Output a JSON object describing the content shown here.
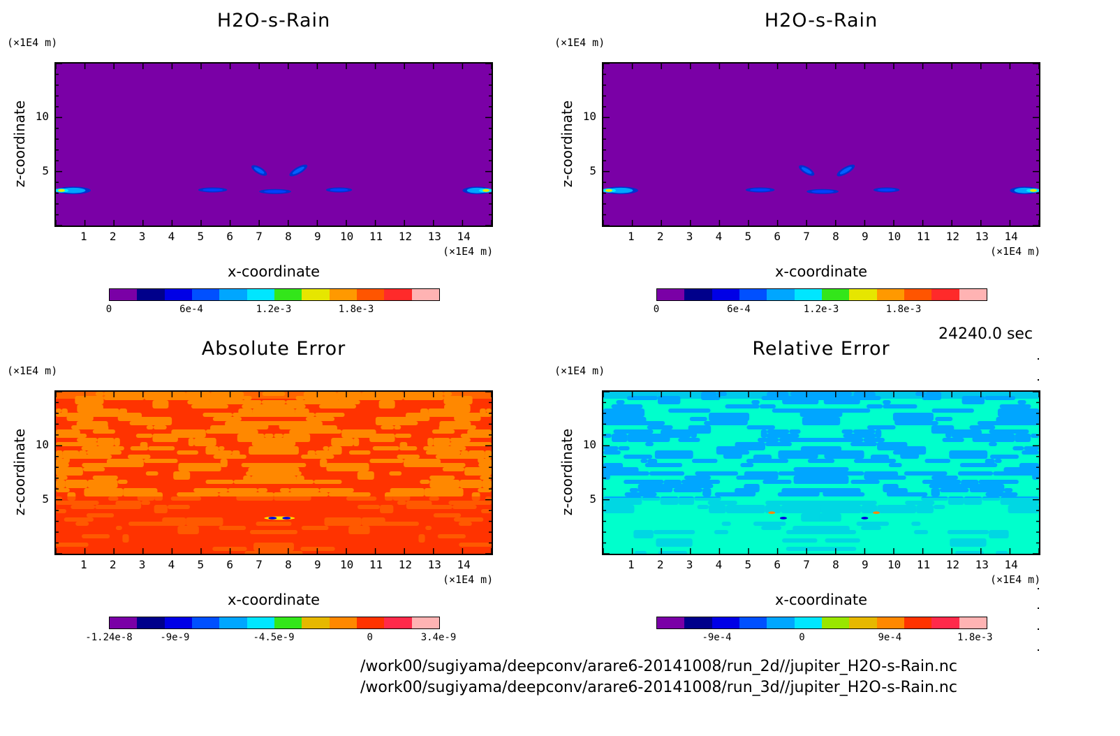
{
  "panels": [
    {
      "title": "H2O-s-Rain",
      "ylabel": "z-coordinate",
      "xlabel": "x-coordinate",
      "yunit": "(×1E4 m)",
      "xunit": "(×1E4 m)",
      "colorbar": {
        "colors": [
          "#7a00a6",
          "#00008b",
          "#0000e6",
          "#0050ff",
          "#00a6ff",
          "#00e6ff",
          "#33e61a",
          "#e6e600",
          "#ff9900",
          "#ff5500",
          "#ff2a2a",
          "#ffb3b3"
        ],
        "labels": [
          "0",
          "6e-4",
          "1.2e-3",
          "1.8e-3"
        ],
        "label_positions": [
          0,
          3,
          6,
          9
        ]
      }
    },
    {
      "title": "H2O-s-Rain",
      "ylabel": "z-coordinate",
      "xlabel": "x-coordinate",
      "yunit": "(×1E4 m)",
      "xunit": "(×1E4 m)",
      "colorbar": {
        "colors": [
          "#7a00a6",
          "#00008b",
          "#0000e6",
          "#0050ff",
          "#00a6ff",
          "#00e6ff",
          "#33e61a",
          "#e6e600",
          "#ff9900",
          "#ff5500",
          "#ff2a2a",
          "#ffb3b3"
        ],
        "labels": [
          "0",
          "6e-4",
          "1.2e-3",
          "1.8e-3"
        ],
        "label_positions": [
          0,
          3,
          6,
          9
        ]
      }
    },
    {
      "title": "Absolute Error",
      "ylabel": "z-coordinate",
      "xlabel": "x-coordinate",
      "yunit": "(×1E4 m)",
      "xunit": "(×1E4 m)",
      "colorbar": {
        "colors": [
          "#7a00a6",
          "#00008b",
          "#0000e6",
          "#0050ff",
          "#00a6ff",
          "#00e6ff",
          "#33e61a",
          "#e6b800",
          "#ff8800",
          "#ff3300",
          "#ff2a4a",
          "#ffb3b3"
        ],
        "labels": [
          "-1.24e-8",
          "-9e-9",
          "-4.5e-9",
          "0",
          "3.4e-9"
        ],
        "label_positions": [
          0,
          2.4,
          6,
          9.5,
          12
        ]
      }
    },
    {
      "title": "Relative Error",
      "ylabel": "z-coordinate",
      "xlabel": "x-coordinate",
      "yunit": "(×1E4 m)",
      "xunit": "(×1E4 m)",
      "colorbar": {
        "colors": [
          "#7a00a6",
          "#00008b",
          "#0000e6",
          "#0050ff",
          "#00a6ff",
          "#00e6ff",
          "#99e600",
          "#e6b800",
          "#ff8800",
          "#ff3300",
          "#ff2a4a",
          "#ffb3b3"
        ],
        "labels": [
          "-9e-4",
          "0",
          "9e-4",
          "1.8e-3"
        ],
        "label_positions": [
          2.2,
          5.3,
          8.5,
          11.6
        ]
      }
    }
  ],
  "time_label": "24240.0 sec",
  "file_paths": [
    "/work00/sugiyama/deepconv/arare6-20141008/run_2d//jupiter_H2O-s-Rain.nc",
    "/work00/sugiyama/deepconv/arare6-20141008/run_3d//jupiter_H2O-s-Rain.nc"
  ],
  "chart_data": [
    {
      "type": "heatmap",
      "title": "H2O-s-Rain",
      "xlabel": "x-coordinate (×1E4 m)",
      "ylabel": "z-coordinate (×1E4 m)",
      "xlim": [
        0,
        15
      ],
      "ylim": [
        0,
        15
      ],
      "xticks": [
        1,
        2,
        3,
        4,
        5,
        6,
        7,
        8,
        9,
        10,
        11,
        12,
        13,
        14
      ],
      "yticks": [
        5,
        10
      ],
      "background_value": 0,
      "features": [
        {
          "x": [
            0,
            1.2
          ],
          "z": [
            3,
            3.5
          ],
          "max_value": 0.0012
        },
        {
          "x": [
            6.7,
            7.3
          ],
          "z": [
            4.6,
            5.6
          ],
          "max_value": 0.0006
        },
        {
          "x": [
            8.0,
            8.7
          ],
          "z": [
            4.6,
            5.6
          ],
          "max_value": 0.0006
        },
        {
          "x": [
            4.9,
            5.9
          ],
          "z": [
            3.2,
            3.4
          ],
          "max_value": 0.0003
        },
        {
          "x": [
            9.3,
            10.2
          ],
          "z": [
            3.2,
            3.4
          ],
          "max_value": 0.0003
        },
        {
          "x": [
            7.0,
            8.1
          ],
          "z": [
            3.1,
            3.2
          ],
          "max_value": 0.0002
        },
        {
          "x": [
            14.0,
            15
          ],
          "z": [
            3,
            3.5
          ],
          "max_value": 0.0012
        }
      ]
    },
    {
      "type": "heatmap",
      "title": "H2O-s-Rain",
      "xlabel": "x-coordinate (×1E4 m)",
      "ylabel": "z-coordinate (×1E4 m)",
      "xlim": [
        0,
        15
      ],
      "ylim": [
        0,
        15
      ],
      "xticks": [
        1,
        2,
        3,
        4,
        5,
        6,
        7,
        8,
        9,
        10,
        11,
        12,
        13,
        14
      ],
      "yticks": [
        5,
        10
      ],
      "background_value": 0,
      "features": [
        {
          "x": [
            0,
            1.2
          ],
          "z": [
            3,
            3.5
          ],
          "max_value": 0.0012
        },
        {
          "x": [
            6.7,
            7.3
          ],
          "z": [
            4.6,
            5.6
          ],
          "max_value": 0.0006
        },
        {
          "x": [
            8.0,
            8.7
          ],
          "z": [
            4.6,
            5.6
          ],
          "max_value": 0.0006
        },
        {
          "x": [
            4.9,
            5.9
          ],
          "z": [
            3.2,
            3.4
          ],
          "max_value": 0.0003
        },
        {
          "x": [
            9.3,
            10.2
          ],
          "z": [
            3.2,
            3.4
          ],
          "max_value": 0.0003
        },
        {
          "x": [
            7.0,
            8.1
          ],
          "z": [
            3.1,
            3.2
          ],
          "max_value": 0.0002
        },
        {
          "x": [
            14.0,
            15
          ],
          "z": [
            3,
            3.5
          ],
          "max_value": 0.0012
        }
      ]
    },
    {
      "type": "heatmap",
      "title": "Absolute Error",
      "xlabel": "x-coordinate (×1E4 m)",
      "ylabel": "z-coordinate (×1E4 m)",
      "xlim": [
        0,
        15
      ],
      "ylim": [
        0,
        15
      ],
      "xticks": [
        1,
        2,
        3,
        4,
        5,
        6,
        7,
        8,
        9,
        10,
        11,
        12,
        13,
        14
      ],
      "yticks": [
        5,
        10
      ],
      "dominant_values": [
        "0 to 3.4e-9",
        "-4.5e-9 to 0"
      ]
    },
    {
      "type": "heatmap",
      "title": "Relative Error",
      "xlabel": "x-coordinate (×1E4 m)",
      "ylabel": "z-coordinate (×1E4 m)",
      "xlim": [
        0,
        15
      ],
      "ylim": [
        0,
        15
      ],
      "xticks": [
        1,
        2,
        3,
        4,
        5,
        6,
        7,
        8,
        9,
        10,
        11,
        12,
        13,
        14
      ],
      "yticks": [
        5,
        10
      ],
      "dominant_values": [
        "0",
        "-9e-4 to 0"
      ]
    }
  ]
}
